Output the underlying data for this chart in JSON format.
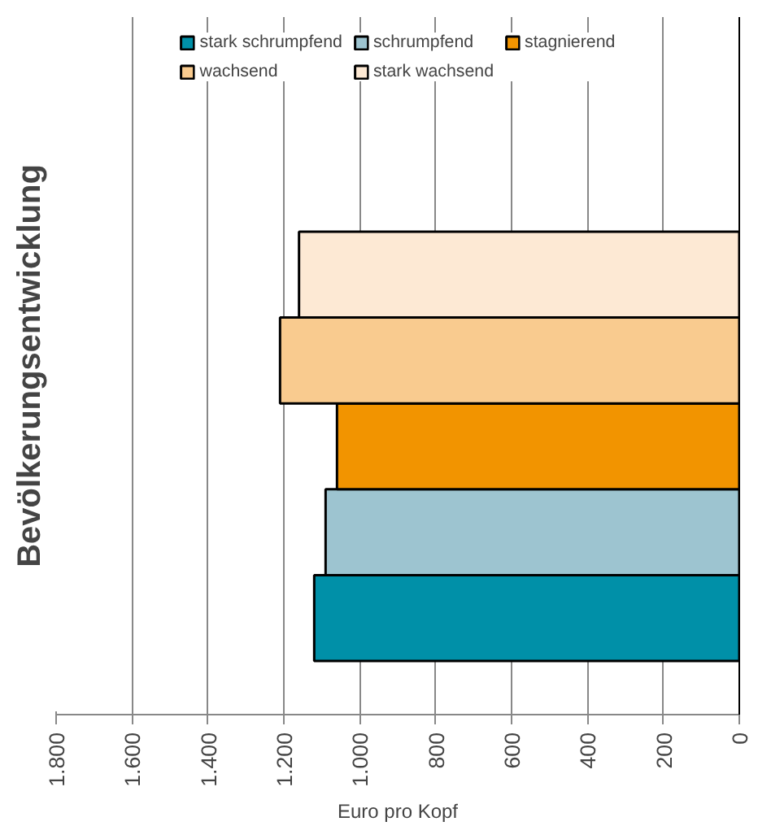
{
  "chart_data": {
    "type": "bar",
    "orientation": "horizontal",
    "title": "Bevölkerungsentwicklung",
    "xlabel": "Euro pro Kopf",
    "categories": [
      null
    ],
    "series": [
      {
        "name": "stark schrumpfend",
        "color": "#0090a8",
        "values": [
          1120
        ]
      },
      {
        "name": "schrumpfend",
        "color": "#9dc4d0",
        "values": [
          1090
        ]
      },
      {
        "name": "stagnierend",
        "color": "#f29400",
        "values": [
          1060
        ]
      },
      {
        "name": "wachsend",
        "color": "#f9cb8f",
        "values": [
          1210
        ]
      },
      {
        "name": "stark wachsend",
        "color": "#fde9d4",
        "values": [
          1160
        ]
      }
    ],
    "xlim": [
      1800,
      0
    ],
    "xticks": [
      {
        "value": 1800,
        "label": "1.800"
      },
      {
        "value": 1600,
        "label": "1.600"
      },
      {
        "value": 1400,
        "label": "1.400"
      },
      {
        "value": 1200,
        "label": "1.200"
      },
      {
        "value": 1000,
        "label": "1.000"
      },
      800,
      600,
      400,
      200,
      0
    ],
    "grid": "x",
    "legend": "top"
  }
}
